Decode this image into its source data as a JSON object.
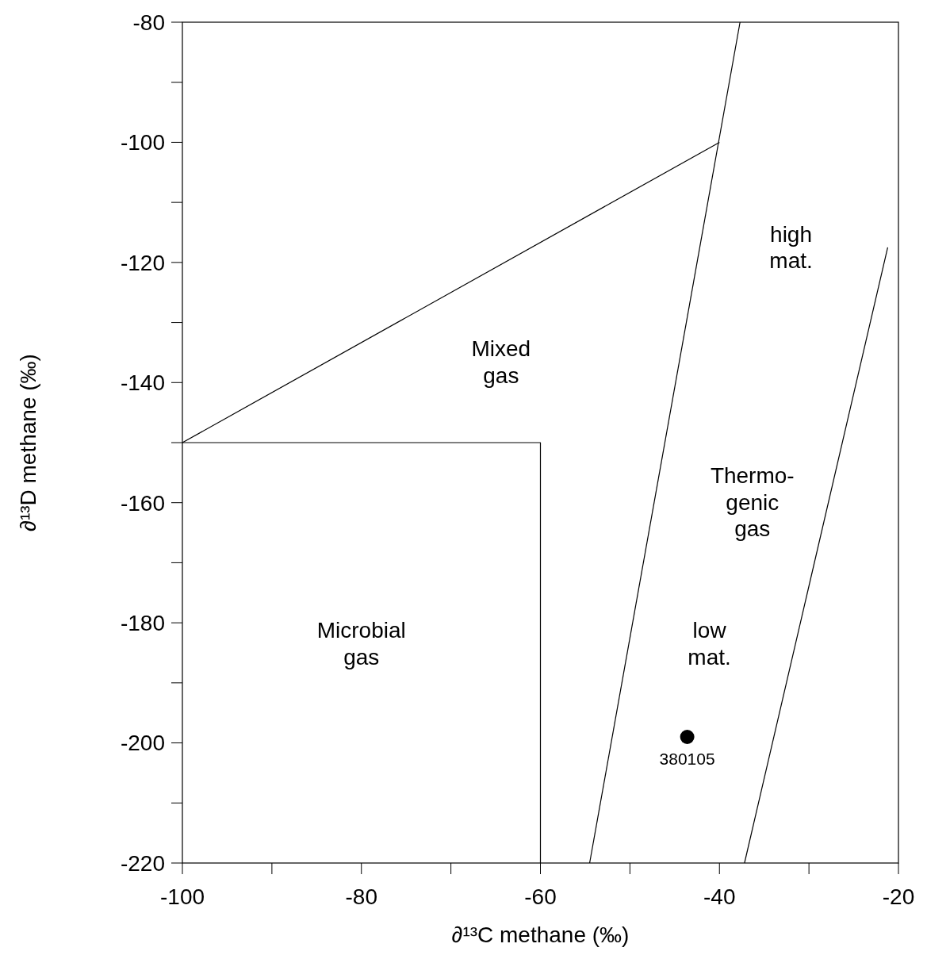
{
  "chart_data": {
    "type": "scatter",
    "xlabel": "∂¹³C methane (‰)",
    "ylabel": "∂¹³D methane (‰)",
    "xlim": [
      -100,
      -20
    ],
    "ylim": [
      -220,
      -80
    ],
    "xticks": [
      -100,
      {
        "value": -90,
        "label": null
      },
      -80,
      {
        "value": -70,
        "label": null
      },
      -60,
      {
        "value": -50,
        "label": null
      },
      -40,
      {
        "value": -30,
        "label": null
      },
      -20
    ],
    "yticks": [
      -220,
      {
        "value": -210,
        "label": null
      },
      -200,
      {
        "value": -190,
        "label": null
      },
      -180,
      {
        "value": -170,
        "label": null
      },
      -160,
      {
        "value": -150,
        "label": null
      },
      -140,
      {
        "value": -130,
        "label": null
      },
      -120,
      {
        "value": -110,
        "label": null
      },
      -100,
      {
        "value": -90,
        "label": null
      },
      -80
    ],
    "grid": false,
    "series": [
      {
        "type": "line",
        "color": "#000000",
        "marker": "none",
        "line_style": "solid",
        "x": [
          -100,
          -40
        ],
        "values": [
          -150,
          -100
        ]
      },
      {
        "type": "line",
        "color": "#000000",
        "marker": "none",
        "line_style": "solid",
        "x": [
          -100,
          -60,
          -60
        ],
        "values": [
          -150,
          -150,
          -220
        ]
      },
      {
        "type": "line",
        "color": "#000000",
        "marker": "none",
        "line_style": "solid",
        "x": [
          -54.5,
          -37.7
        ],
        "values": [
          -220,
          -80
        ]
      },
      {
        "type": "line",
        "color": "#000000",
        "marker": "none",
        "line_style": "solid",
        "x": [
          -37.2,
          -21.2
        ],
        "values": [
          -220,
          -117.5
        ]
      },
      {
        "color": "#000000",
        "marker": "circle",
        "x": [
          -43.6
        ],
        "values": [
          -199
        ]
      }
    ],
    "annotations": [
      "Mixed\ngas",
      "Microbial\ngas",
      "Thermo-\ngenic\ngas",
      "high\nmat.",
      "low\nmat.",
      {
        "text": "380105",
        "x": -43.6,
        "y": -199
      }
    ]
  }
}
